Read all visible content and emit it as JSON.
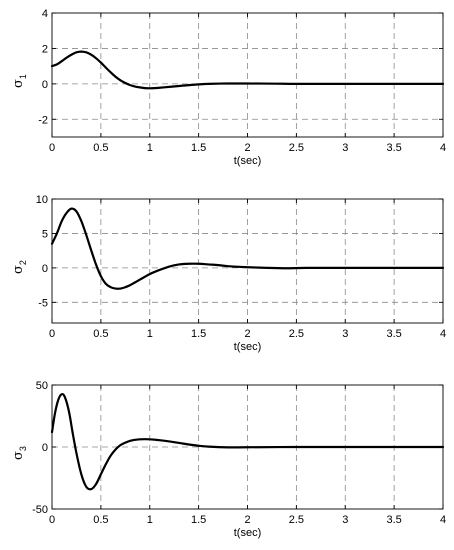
{
  "chart_data": [
    {
      "type": "line",
      "xlabel": "t(sec)",
      "ylabel": {
        "symbol": "σ",
        "subscript": "1"
      },
      "xlim": [
        0,
        4
      ],
      "ylim": [
        -3,
        4
      ],
      "xticks": [
        0,
        0.5,
        1,
        1.5,
        2,
        2.5,
        3,
        3.5,
        4
      ],
      "xtick_labels": [
        "0",
        "0.5",
        "1",
        "1.5",
        "2",
        "2.5",
        "3",
        "3.5",
        "4"
      ],
      "yticks": [
        -2,
        0,
        2,
        4
      ],
      "ytick_labels": [
        "-2",
        "0",
        "2",
        "4"
      ],
      "grid": true,
      "series": [
        {
          "x": [
            0,
            0.05,
            0.1,
            0.15,
            0.2,
            0.25,
            0.3,
            0.35,
            0.4,
            0.45,
            0.5,
            0.55,
            0.6,
            0.65,
            0.7,
            0.75,
            0.8,
            0.85,
            0.9,
            0.95,
            1.0,
            1.05,
            1.1,
            1.2,
            1.3,
            1.4,
            1.5,
            1.6,
            1.8,
            2.0,
            2.3,
            2.5,
            3.0,
            3.5,
            4.0
          ],
          "y": [
            1.0,
            1.1,
            1.28,
            1.48,
            1.65,
            1.78,
            1.82,
            1.78,
            1.65,
            1.45,
            1.2,
            0.92,
            0.65,
            0.4,
            0.2,
            0.05,
            -0.07,
            -0.15,
            -0.2,
            -0.24,
            -0.25,
            -0.24,
            -0.22,
            -0.17,
            -0.12,
            -0.07,
            -0.03,
            0.0,
            0.02,
            0.02,
            0.01,
            0.0,
            0.0,
            0.0,
            0.0
          ]
        }
      ]
    },
    {
      "type": "line",
      "xlabel": "t(sec)",
      "ylabel": {
        "symbol": "σ",
        "subscript": "2"
      },
      "xlim": [
        0,
        4
      ],
      "ylim": [
        -8,
        10
      ],
      "xticks": [
        0,
        0.5,
        1,
        1.5,
        2,
        2.5,
        3,
        3.5,
        4
      ],
      "xtick_labels": [
        "0",
        "0.5",
        "1",
        "1.5",
        "2",
        "2.5",
        "3",
        "3.5",
        "4"
      ],
      "yticks": [
        -5,
        0,
        5,
        10
      ],
      "ytick_labels": [
        "-5",
        "0",
        "5",
        "10"
      ],
      "grid": true,
      "series": [
        {
          "x": [
            0,
            0.05,
            0.1,
            0.15,
            0.2,
            0.25,
            0.3,
            0.35,
            0.4,
            0.45,
            0.5,
            0.55,
            0.6,
            0.65,
            0.7,
            0.75,
            0.8,
            0.85,
            0.9,
            1.0,
            1.1,
            1.2,
            1.3,
            1.4,
            1.5,
            1.6,
            1.7,
            1.8,
            2.0,
            2.2,
            2.4,
            2.6,
            3.0,
            3.5,
            4.0
          ],
          "y": [
            3.5,
            5.0,
            6.8,
            8.0,
            8.6,
            8.2,
            6.8,
            4.8,
            2.6,
            0.5,
            -1.2,
            -2.3,
            -2.8,
            -3.0,
            -3.0,
            -2.8,
            -2.5,
            -2.1,
            -1.7,
            -0.9,
            -0.3,
            0.2,
            0.5,
            0.6,
            0.6,
            0.5,
            0.4,
            0.25,
            0.1,
            0.0,
            -0.05,
            0.0,
            0.0,
            0.0,
            0.0
          ]
        }
      ]
    },
    {
      "type": "line",
      "xlabel": "t(sec)",
      "ylabel": {
        "symbol": "σ",
        "subscript": "3"
      },
      "xlim": [
        0,
        4
      ],
      "ylim": [
        -50,
        50
      ],
      "xticks": [
        0,
        0.5,
        1,
        1.5,
        2,
        2.5,
        3,
        3.5,
        4
      ],
      "xtick_labels": [
        "0",
        "0.5",
        "1",
        "1.5",
        "2",
        "2.5",
        "3",
        "3.5",
        "4"
      ],
      "yticks": [
        -50,
        0,
        50
      ],
      "ytick_labels": [
        "-50",
        "0",
        "50"
      ],
      "grid": true,
      "series": [
        {
          "x": [
            0,
            0.03,
            0.06,
            0.09,
            0.12,
            0.15,
            0.18,
            0.21,
            0.25,
            0.3,
            0.35,
            0.4,
            0.45,
            0.5,
            0.55,
            0.6,
            0.65,
            0.7,
            0.75,
            0.8,
            0.85,
            0.9,
            0.95,
            1.0,
            1.05,
            1.1,
            1.2,
            1.3,
            1.4,
            1.5,
            1.6,
            1.8,
            2.0,
            2.5,
            3.0,
            3.5,
            4.0
          ],
          "y": [
            12,
            27,
            37,
            42,
            42,
            36,
            26,
            12,
            -5,
            -22,
            -32,
            -34,
            -30,
            -22,
            -14,
            -7,
            -2,
            1.5,
            3.5,
            5,
            5.8,
            6.2,
            6.3,
            6.2,
            5.9,
            5.5,
            4.5,
            3.3,
            2.0,
            1.0,
            0.3,
            -0.3,
            -0.2,
            0,
            0,
            0,
            0
          ]
        }
      ]
    }
  ]
}
